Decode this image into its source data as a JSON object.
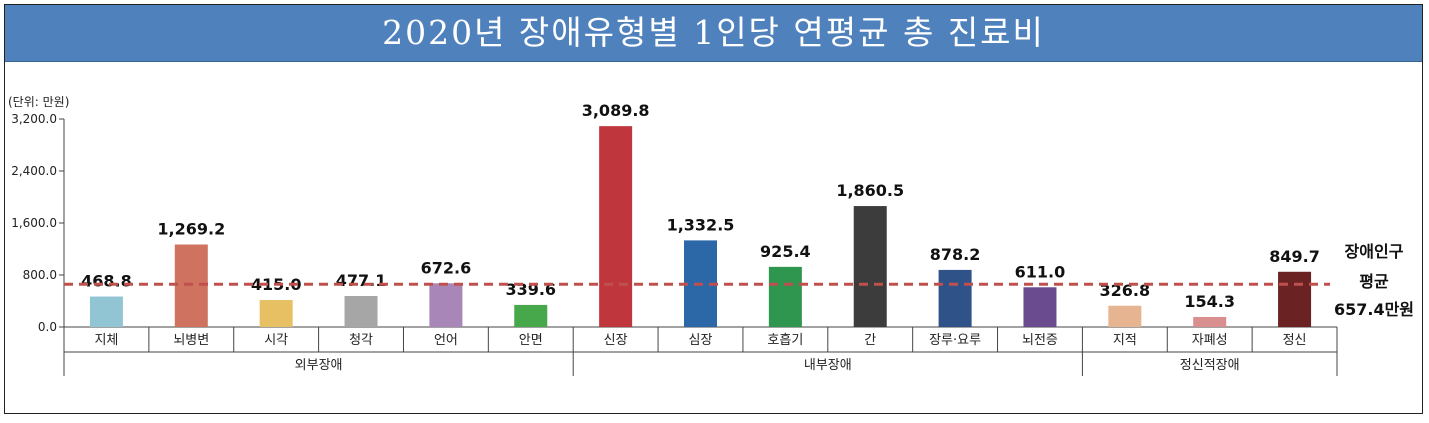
{
  "title": "2020년 장애유형별 1인당 연평균 총 진료비",
  "chart_data": {
    "type": "bar",
    "unit_label": "(단위: 만원)",
    "ylim": [
      0,
      3200
    ],
    "yticks": [
      0,
      800,
      1600,
      2400,
      3200
    ],
    "ytick_labels": [
      "0.0",
      "800.0",
      "1,600.0",
      "2,400.0",
      "3,200.0"
    ],
    "categories": [
      "지체",
      "뇌병변",
      "시각",
      "청각",
      "언어",
      "안면",
      "신장",
      "심장",
      "호흡기",
      "간",
      "장루·요루",
      "뇌전증",
      "지적",
      "자폐성",
      "정신"
    ],
    "values": [
      468.8,
      1269.2,
      415.0,
      477.1,
      672.6,
      339.6,
      3089.8,
      1332.5,
      925.4,
      1860.5,
      878.2,
      611.0,
      326.8,
      154.3,
      849.7
    ],
    "value_labels": [
      "468.8",
      "1,269.2",
      "415.0",
      "477.1",
      "672.6",
      "339.6",
      "3,089.8",
      "1,332.5",
      "925.4",
      "1,860.5",
      "878.2",
      "611.0",
      "326.8",
      "154.3",
      "849.7"
    ],
    "colors": [
      "#92c5d4",
      "#cf7360",
      "#e8c064",
      "#a6a6a6",
      "#a887b8",
      "#46a84a",
      "#c0363d",
      "#2c67a8",
      "#2f9650",
      "#3c3c3c",
      "#2f5288",
      "#6a4b8f",
      "#e6b491",
      "#d98f90",
      "#6b2222"
    ],
    "groups": [
      {
        "label": "외부장애",
        "start": 0,
        "end": 5
      },
      {
        "label": "내부장애",
        "start": 6,
        "end": 11
      },
      {
        "label": "정신적장애",
        "start": 12,
        "end": 14
      }
    ],
    "average": {
      "value": 657.4,
      "labels": [
        "장애인구",
        "평균",
        "657.4만원"
      ],
      "color": "#c0504d"
    },
    "grid": false,
    "legend": "none"
  }
}
